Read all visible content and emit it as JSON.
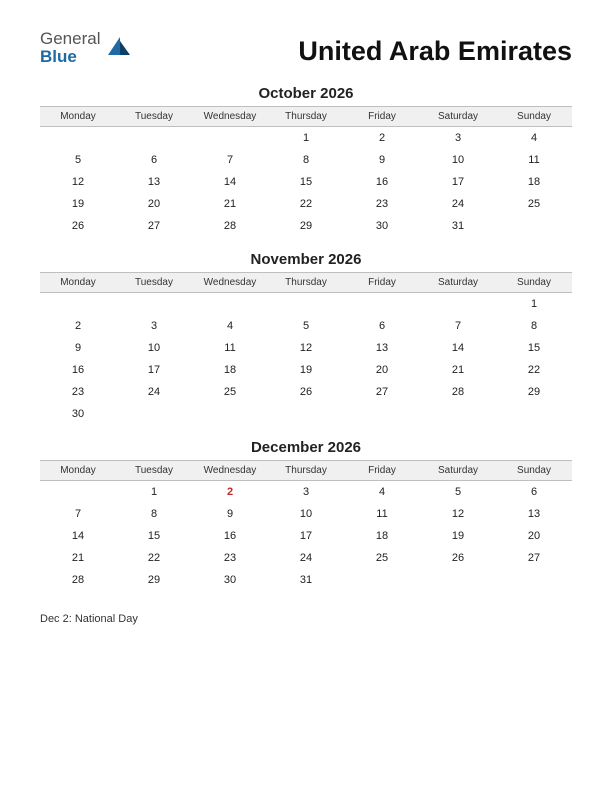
{
  "logo": {
    "text1": "General",
    "text2": "Blue",
    "accent_color": "#1d6aa5"
  },
  "page_title": "United Arab Emirates",
  "background_color": "#ffffff",
  "header_row_bg": "#f0f0f0",
  "header_row_border": "#bfbfbf",
  "holiday_color": "#c62828",
  "weekdays": [
    "Monday",
    "Tuesday",
    "Wednesday",
    "Thursday",
    "Friday",
    "Saturday",
    "Sunday"
  ],
  "months": [
    {
      "title": "October 2026",
      "weeks": [
        [
          "",
          "",
          "",
          "1",
          "2",
          "3",
          "4"
        ],
        [
          "5",
          "6",
          "7",
          "8",
          "9",
          "10",
          "11"
        ],
        [
          "12",
          "13",
          "14",
          "15",
          "16",
          "17",
          "18"
        ],
        [
          "19",
          "20",
          "21",
          "22",
          "23",
          "24",
          "25"
        ],
        [
          "26",
          "27",
          "28",
          "29",
          "30",
          "31",
          ""
        ]
      ],
      "holidays": []
    },
    {
      "title": "November 2026",
      "weeks": [
        [
          "",
          "",
          "",
          "",
          "",
          "",
          "1"
        ],
        [
          "2",
          "3",
          "4",
          "5",
          "6",
          "7",
          "8"
        ],
        [
          "9",
          "10",
          "11",
          "12",
          "13",
          "14",
          "15"
        ],
        [
          "16",
          "17",
          "18",
          "19",
          "20",
          "21",
          "22"
        ],
        [
          "23",
          "24",
          "25",
          "26",
          "27",
          "28",
          "29"
        ],
        [
          "30",
          "",
          "",
          "",
          "",
          "",
          ""
        ]
      ],
      "holidays": []
    },
    {
      "title": "December 2026",
      "weeks": [
        [
          "",
          "1",
          "2",
          "3",
          "4",
          "5",
          "6"
        ],
        [
          "7",
          "8",
          "9",
          "10",
          "11",
          "12",
          "13"
        ],
        [
          "14",
          "15",
          "16",
          "17",
          "18",
          "19",
          "20"
        ],
        [
          "21",
          "22",
          "23",
          "24",
          "25",
          "26",
          "27"
        ],
        [
          "28",
          "29",
          "30",
          "31",
          "",
          "",
          ""
        ]
      ],
      "holidays": [
        "2"
      ]
    }
  ],
  "notes": "Dec 2: National Day"
}
